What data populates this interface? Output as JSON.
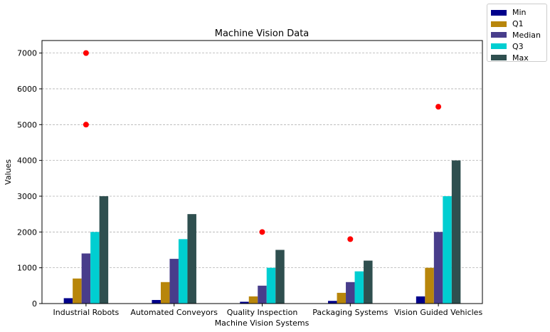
{
  "chart_data": {
    "type": "bar",
    "title": "Machine Vision Data",
    "xlabel": "Machine Vision Systems",
    "ylabel": "Values",
    "categories": [
      "Industrial Robots",
      "Automated Conveyors",
      "Quality Inspection",
      "Packaging Systems",
      "Vision Guided Vehicles"
    ],
    "series": [
      {
        "name": "Min",
        "color": "#00008b",
        "values": [
          150,
          100,
          50,
          75,
          200
        ]
      },
      {
        "name": "Q1",
        "color": "#b8860b",
        "values": [
          700,
          600,
          200,
          300,
          1000
        ]
      },
      {
        "name": "Median",
        "color": "#483d8b",
        "values": [
          1400,
          1250,
          500,
          600,
          2000
        ]
      },
      {
        "name": "Q3",
        "color": "#00ced1",
        "values": [
          2000,
          1800,
          1000,
          900,
          3000
        ]
      },
      {
        "name": "Max",
        "color": "#2f4f4f",
        "values": [
          3000,
          2500,
          1500,
          1200,
          4000
        ]
      }
    ],
    "outliers": {
      "color": "#ff0000",
      "points": [
        {
          "category": "Industrial Robots",
          "values": [
            5000,
            7000
          ]
        },
        {
          "category": "Automated Conveyors",
          "values": []
        },
        {
          "category": "Quality Inspection",
          "values": [
            2000
          ]
        },
        {
          "category": "Packaging Systems",
          "values": [
            1800
          ]
        },
        {
          "category": "Vision Guided Vehicles",
          "values": [
            5500
          ]
        }
      ]
    },
    "ylim": [
      0,
      7350
    ],
    "yticks": [
      0,
      1000,
      2000,
      3000,
      4000,
      5000,
      6000,
      7000
    ],
    "grid": "y-dashed",
    "legend_position": "outside top-right"
  }
}
